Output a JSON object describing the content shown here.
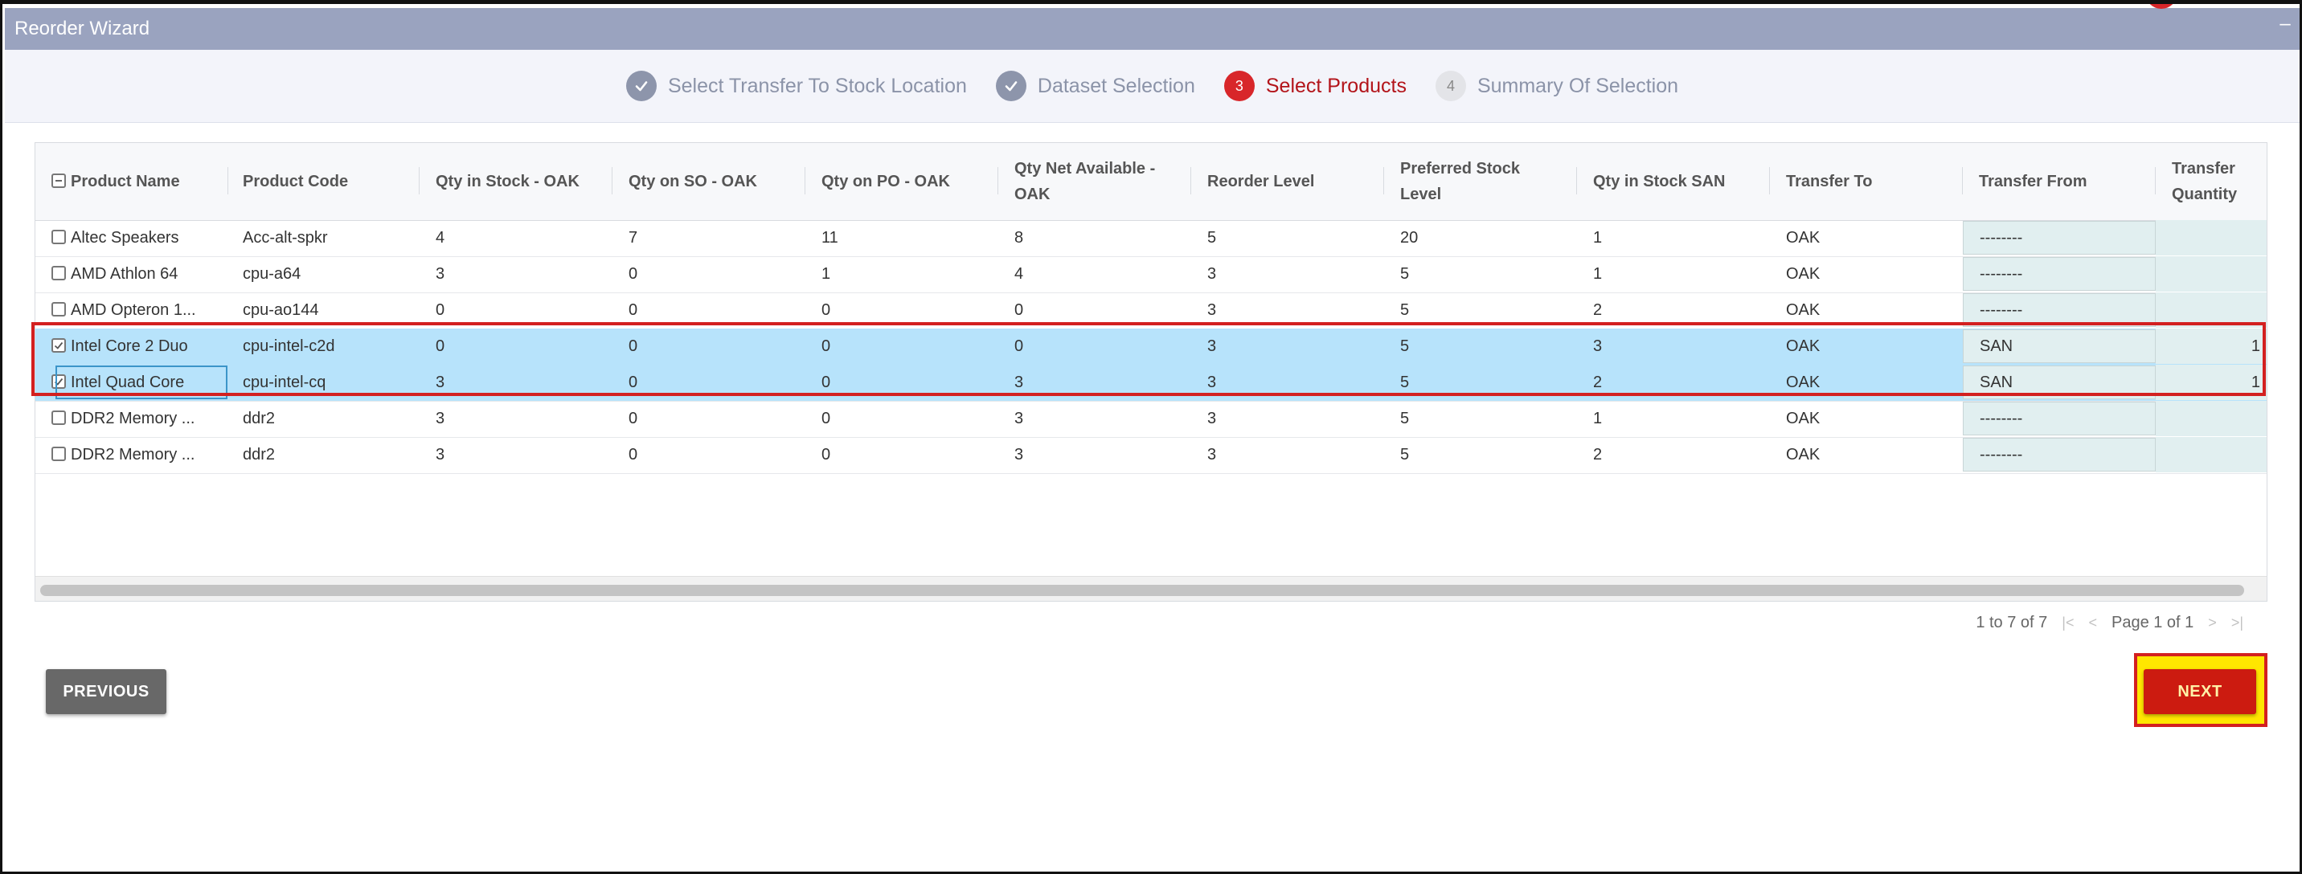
{
  "window": {
    "title": "Reorder Wizard"
  },
  "steps": [
    {
      "num": "1",
      "label": "Select Transfer To Stock Location",
      "state": "done"
    },
    {
      "num": "2",
      "label": "Dataset Selection",
      "state": "done"
    },
    {
      "num": "3",
      "label": "Select Products",
      "state": "active"
    },
    {
      "num": "4",
      "label": "Summary Of Selection",
      "state": "pending"
    }
  ],
  "columns": [
    "Product Name",
    "Product Code",
    "Qty in Stock - OAK",
    "Qty on SO - OAK",
    "Qty on PO - OAK",
    "Qty Net Available - OAK",
    "Reorder Level",
    "Preferred Stock Level",
    "Qty in Stock SAN",
    "Transfer To",
    "Transfer From",
    "Transfer Quantity"
  ],
  "rows": [
    {
      "selected": false,
      "product_name": "Altec Speakers",
      "product_code": "Acc-alt-spkr",
      "qty_stock_oak": "4",
      "qty_so_oak": "7",
      "qty_po_oak": "11",
      "qty_net_oak": "8",
      "reorder_level": "5",
      "preferred_level": "20",
      "qty_stock_san": "1",
      "transfer_to": "OAK",
      "transfer_from": "--------",
      "transfer_qty": ""
    },
    {
      "selected": false,
      "product_name": "AMD Athlon 64",
      "product_code": "cpu-a64",
      "qty_stock_oak": "3",
      "qty_so_oak": "0",
      "qty_po_oak": "1",
      "qty_net_oak": "4",
      "reorder_level": "3",
      "preferred_level": "5",
      "qty_stock_san": "1",
      "transfer_to": "OAK",
      "transfer_from": "--------",
      "transfer_qty": ""
    },
    {
      "selected": false,
      "product_name": "AMD Opteron 1...",
      "product_code": "cpu-ao144",
      "qty_stock_oak": "0",
      "qty_so_oak": "0",
      "qty_po_oak": "0",
      "qty_net_oak": "0",
      "reorder_level": "3",
      "preferred_level": "5",
      "qty_stock_san": "2",
      "transfer_to": "OAK",
      "transfer_from": "--------",
      "transfer_qty": ""
    },
    {
      "selected": true,
      "product_name": "Intel Core 2 Duo",
      "product_code": "cpu-intel-c2d",
      "qty_stock_oak": "0",
      "qty_so_oak": "0",
      "qty_po_oak": "0",
      "qty_net_oak": "0",
      "reorder_level": "3",
      "preferred_level": "5",
      "qty_stock_san": "3",
      "transfer_to": "OAK",
      "transfer_from": "SAN",
      "transfer_qty": "1"
    },
    {
      "selected": true,
      "product_name": "Intel Quad Core",
      "product_code": "cpu-intel-cq",
      "qty_stock_oak": "3",
      "qty_so_oak": "0",
      "qty_po_oak": "0",
      "qty_net_oak": "3",
      "reorder_level": "3",
      "preferred_level": "5",
      "qty_stock_san": "2",
      "transfer_to": "OAK",
      "transfer_from": "SAN",
      "transfer_qty": "1"
    },
    {
      "selected": false,
      "product_name": "DDR2 Memory ...",
      "product_code": "ddr2",
      "qty_stock_oak": "3",
      "qty_so_oak": "0",
      "qty_po_oak": "0",
      "qty_net_oak": "3",
      "reorder_level": "3",
      "preferred_level": "5",
      "qty_stock_san": "1",
      "transfer_to": "OAK",
      "transfer_from": "--------",
      "transfer_qty": ""
    },
    {
      "selected": false,
      "product_name": "DDR2 Memory ...",
      "product_code": "ddr2",
      "qty_stock_oak": "3",
      "qty_so_oak": "0",
      "qty_po_oak": "0",
      "qty_net_oak": "3",
      "reorder_level": "3",
      "preferred_level": "5",
      "qty_stock_san": "2",
      "transfer_to": "OAK",
      "transfer_from": "--------",
      "transfer_qty": ""
    }
  ],
  "pager": {
    "summary": "1 to 7 of 7",
    "page_text": "Page 1 of 1"
  },
  "buttons": {
    "previous": "PREVIOUS",
    "next": "NEXT"
  },
  "colors": {
    "accent_red": "#d8262a",
    "selected_row": "#b7e3fb",
    "titlebar": "#9aa3bf",
    "next_button": "#cc1b10",
    "highlight": "#ffe600"
  }
}
